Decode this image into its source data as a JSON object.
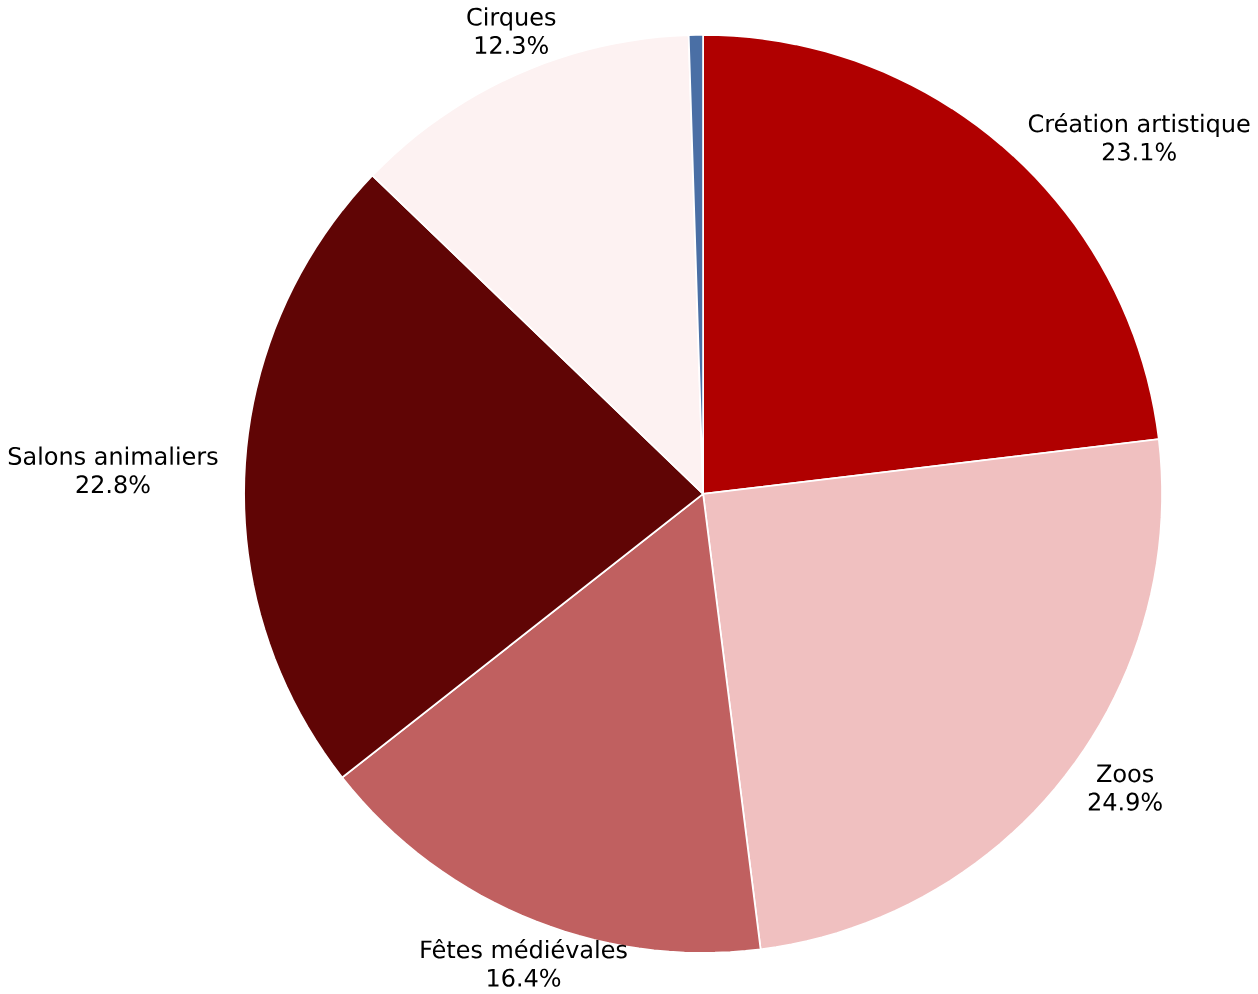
{
  "chart_data": {
    "type": "pie",
    "categories": [
      "Création artistique",
      "Zoos",
      "Fêtes médiévales",
      "Salons animaliers",
      "Cirques",
      null
    ],
    "values": [
      23.1,
      24.9,
      16.4,
      22.8,
      12.3,
      0.5
    ],
    "value_labels": [
      "23.1%",
      "24.9%",
      "16.4%",
      "22.8%",
      "12.3%",
      null
    ],
    "colors": [
      "#b00000",
      "#f0c0c0",
      "#c06060",
      "#600505",
      "#fdf2f2",
      "#4a6fa5"
    ]
  }
}
